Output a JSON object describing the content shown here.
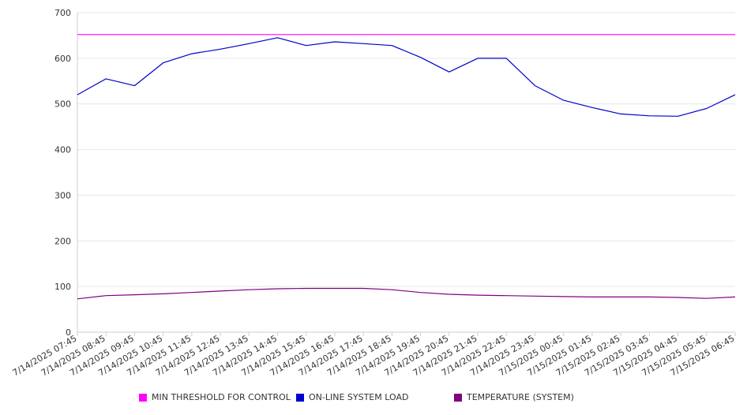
{
  "chart_data": {
    "type": "line",
    "title": "",
    "xlabel": "",
    "ylabel": "",
    "ylim": [
      0,
      700
    ],
    "yticks": [
      0,
      100,
      200,
      300,
      400,
      500,
      600,
      700
    ],
    "grid": true,
    "legend_position": "bottom",
    "x": [
      "7/14/2025 07:45",
      "7/14/2025 08:45",
      "7/14/2025 09:45",
      "7/14/2025 10:45",
      "7/14/2025 11:45",
      "7/14/2025 12:45",
      "7/14/2025 13:45",
      "7/14/2025 14:45",
      "7/14/2025 15:45",
      "7/14/2025 16:45",
      "7/14/2025 17:45",
      "7/14/2025 18:45",
      "7/14/2025 19:45",
      "7/14/2025 20:45",
      "7/14/2025 21:45",
      "7/14/2025 22:45",
      "7/14/2025 23:45",
      "7/15/2025 00:45",
      "7/15/2025 01:45",
      "7/15/2025 02:45",
      "7/15/2025 03:45",
      "7/15/2025 04:45",
      "7/15/2025 05:45",
      "7/15/2025 06:45"
    ],
    "xticks": [
      "7/14/2025 07:45",
      "7/14/2025 08:45",
      "7/14/2025 09:45",
      "7/14/2025 10:45",
      "7/14/2025 11:45",
      "7/14/2025 12:45",
      "7/14/2025 13:45",
      "7/14/2025 14:45",
      "7/14/2025 15:45",
      "7/14/2025 16:45",
      "7/14/2025 17:45",
      "7/14/2025 18:45",
      "7/14/2025 19:45",
      "7/14/2025 20:45",
      "7/14/2025 21:45",
      "7/14/2025 22:45",
      "7/14/2025 23:45",
      "7/15/2025 00:45",
      "7/15/2025 01:45",
      "7/15/2025 02:45",
      "7/15/2025 03:45",
      "7/15/2025 04:45",
      "7/15/2025 05:45",
      "7/15/2025 06:45"
    ],
    "series": [
      {
        "name": "MIN THRESHOLD FOR CONTROL",
        "color": "#ff00ff",
        "values": [
          652,
          652,
          652,
          652,
          652,
          652,
          652,
          652,
          652,
          652,
          652,
          652,
          652,
          652,
          652,
          652,
          652,
          652,
          652,
          652,
          652,
          652,
          652,
          652
        ]
      },
      {
        "name": "ON-LINE SYSTEM LOAD",
        "color": "#0000cc",
        "values": [
          520,
          555,
          540,
          590,
          610,
          620,
          632,
          645,
          628,
          636,
          632,
          628,
          602,
          570,
          600,
          600,
          540,
          508,
          492,
          478,
          474,
          473,
          490,
          520
        ]
      },
      {
        "name": "TEMPERATURE (SYSTEM)",
        "color": "#800080",
        "values": [
          73,
          80,
          82,
          84,
          87,
          90,
          93,
          95,
          96,
          96,
          96,
          93,
          87,
          83,
          81,
          80,
          79,
          78,
          77,
          77,
          77,
          76,
          74,
          77
        ]
      }
    ]
  }
}
